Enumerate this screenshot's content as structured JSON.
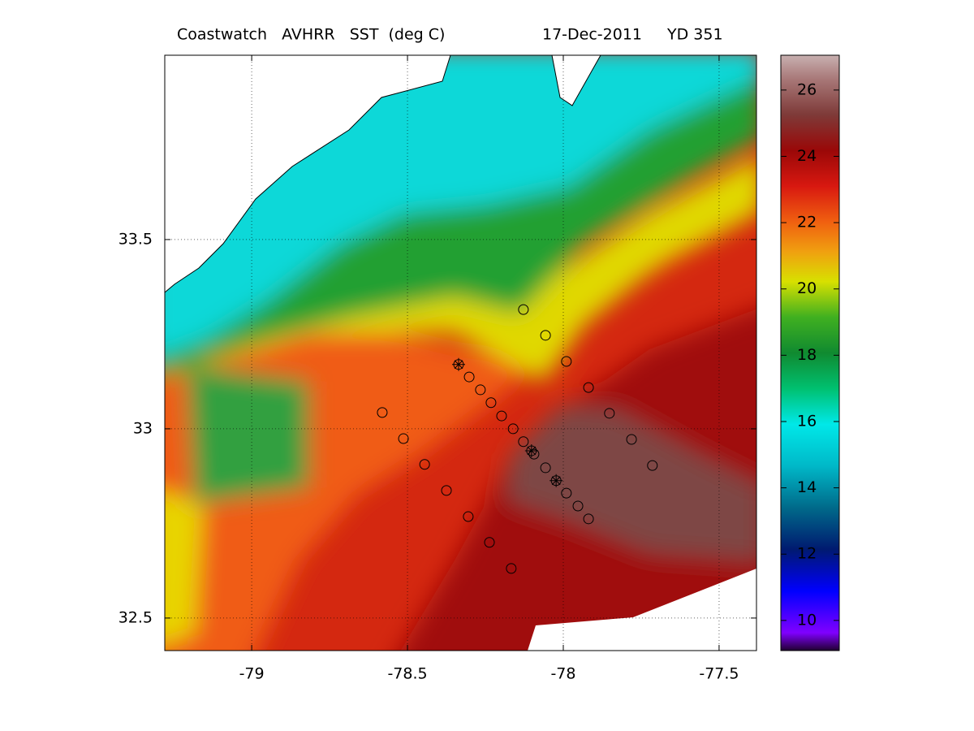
{
  "title": "Coastwatch   AVHRR   SST  (deg C)",
  "date": "17-Dec-2011",
  "yearday": "YD 351",
  "map": {
    "xlim": [
      -79.279,
      -77.38
    ],
    "ylim": [
      32.414,
      33.987
    ],
    "xticks": [
      -79,
      -78.5,
      -78,
      -77.5
    ],
    "yticks": [
      33.5,
      33,
      32.5
    ],
    "grid": true
  },
  "colorbar": {
    "clim": [
      9.09,
      27.05
    ],
    "ticks": [
      10,
      12,
      14,
      16,
      18,
      20,
      22,
      24,
      26
    ]
  },
  "stations": [
    {
      "lon": -78.128,
      "lat": 33.315
    },
    {
      "lon": -78.057,
      "lat": 33.247
    },
    {
      "lon": -77.99,
      "lat": 33.178
    },
    {
      "lon": -77.919,
      "lat": 33.109
    },
    {
      "lon": -77.852,
      "lat": 33.041
    },
    {
      "lon": -77.781,
      "lat": 32.972
    },
    {
      "lon": -77.714,
      "lat": 32.903
    },
    {
      "lon": -78.302,
      "lat": 33.137
    },
    {
      "lon": -78.266,
      "lat": 33.103
    },
    {
      "lon": -78.232,
      "lat": 33.069
    },
    {
      "lon": -78.198,
      "lat": 33.034
    },
    {
      "lon": -78.161,
      "lat": 33.0
    },
    {
      "lon": -78.128,
      "lat": 32.966
    },
    {
      "lon": -78.094,
      "lat": 32.933
    },
    {
      "lon": -78.057,
      "lat": 32.897
    },
    {
      "lon": -77.99,
      "lat": 32.83
    },
    {
      "lon": -77.953,
      "lat": 32.796
    },
    {
      "lon": -77.919,
      "lat": 32.762
    },
    {
      "lon": -78.581,
      "lat": 33.043
    },
    {
      "lon": -78.513,
      "lat": 32.974
    },
    {
      "lon": -78.445,
      "lat": 32.906
    },
    {
      "lon": -78.375,
      "lat": 32.837
    },
    {
      "lon": -78.305,
      "lat": 32.768
    },
    {
      "lon": -78.237,
      "lat": 32.7
    },
    {
      "lon": -78.167,
      "lat": 32.631
    }
  ],
  "marked_stations": [
    {
      "lon": -78.336,
      "lat": 33.17
    },
    {
      "lon": -78.102,
      "lat": 32.942
    },
    {
      "lon": -78.023,
      "lat": 32.863
    }
  ]
}
